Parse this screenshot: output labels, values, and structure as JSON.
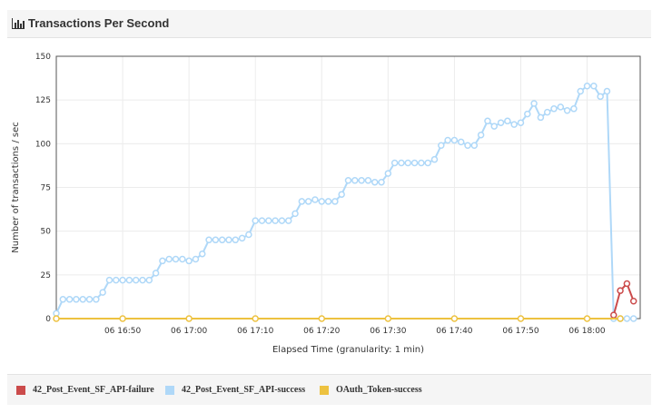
{
  "header": {
    "title": "Transactions Per Second",
    "icon": "bar-chart-icon"
  },
  "colors": {
    "failure": "#cb4b4b",
    "success": "#afd8f8",
    "oauth": "#edc240",
    "header_bg": "#f5f5f5"
  },
  "chart_data": {
    "type": "line",
    "xlabel": "Elapsed Time (granularity: 1 min)",
    "ylabel": "Number of transactions / sec",
    "ylim": [
      0,
      150
    ],
    "yticks": [
      0,
      25,
      50,
      75,
      100,
      125,
      150
    ],
    "xticks": [
      "06 16:50",
      "06 17:00",
      "06 17:10",
      "06 17:20",
      "06 17:30",
      "06 17:40",
      "06 17:50",
      "06 18:00"
    ],
    "xrange": [
      "06 16:40",
      "06 18:08"
    ],
    "grid": true,
    "legend_position": "bottom",
    "series": [
      {
        "name": "42_Post_Event_SF_API-failure",
        "color": "#cb4b4b",
        "x": [
          "06 18:04",
          "06 18:05",
          "06 18:06",
          "06 18:07"
        ],
        "values": [
          2,
          16,
          20,
          10
        ]
      },
      {
        "name": "42_Post_Event_SF_API-success",
        "color": "#afd8f8",
        "x": [
          "06 16:40",
          "06 16:41",
          "06 16:42",
          "06 16:43",
          "06 16:44",
          "06 16:45",
          "06 16:46",
          "06 16:47",
          "06 16:48",
          "06 16:49",
          "06 16:50",
          "06 16:51",
          "06 16:52",
          "06 16:53",
          "06 16:54",
          "06 16:55",
          "06 16:56",
          "06 16:57",
          "06 16:58",
          "06 16:59",
          "06 17:00",
          "06 17:01",
          "06 17:02",
          "06 17:03",
          "06 17:04",
          "06 17:05",
          "06 17:06",
          "06 17:07",
          "06 17:08",
          "06 17:09",
          "06 17:10",
          "06 17:11",
          "06 17:12",
          "06 17:13",
          "06 17:14",
          "06 17:15",
          "06 17:16",
          "06 17:17",
          "06 17:18",
          "06 17:19",
          "06 17:20",
          "06 17:21",
          "06 17:22",
          "06 17:23",
          "06 17:24",
          "06 17:25",
          "06 17:26",
          "06 17:27",
          "06 17:28",
          "06 17:29",
          "06 17:30",
          "06 17:31",
          "06 17:32",
          "06 17:33",
          "06 17:34",
          "06 17:35",
          "06 17:36",
          "06 17:37",
          "06 17:38",
          "06 17:39",
          "06 17:40",
          "06 17:41",
          "06 17:42",
          "06 17:43",
          "06 17:44",
          "06 17:45",
          "06 17:46",
          "06 17:47",
          "06 17:48",
          "06 17:49",
          "06 17:50",
          "06 17:51",
          "06 17:52",
          "06 17:53",
          "06 17:54",
          "06 17:55",
          "06 17:56",
          "06 17:57",
          "06 17:58",
          "06 17:59",
          "06 18:00",
          "06 18:01",
          "06 18:02",
          "06 18:03",
          "06 18:04",
          "06 18:05",
          "06 18:06",
          "06 18:07"
        ],
        "values": [
          3,
          11,
          11,
          11,
          11,
          11,
          11,
          15,
          22,
          22,
          22,
          22,
          22,
          22,
          22,
          26,
          33,
          34,
          34,
          34,
          33,
          34,
          37,
          45,
          45,
          45,
          45,
          45,
          46,
          48,
          56,
          56,
          56,
          56,
          56,
          56,
          60,
          67,
          67,
          68,
          67,
          67,
          67,
          71,
          79,
          79,
          79,
          79,
          78,
          78,
          83,
          89,
          89,
          89,
          89,
          89,
          89,
          91,
          99,
          102,
          102,
          101,
          99,
          99,
          105,
          113,
          110,
          112,
          113,
          111,
          112,
          117,
          123,
          115,
          118,
          120,
          121,
          119,
          120,
          130,
          133,
          133,
          127,
          130,
          0,
          0,
          0,
          0
        ]
      },
      {
        "name": "OAuth_Token-success",
        "color": "#edc240",
        "x": [
          "06 16:40",
          "06 16:50",
          "06 17:00",
          "06 17:10",
          "06 17:20",
          "06 17:30",
          "06 17:40",
          "06 17:50",
          "06 18:00",
          "06 18:05"
        ],
        "values": [
          0,
          0,
          0,
          0,
          0,
          0,
          0,
          0,
          0,
          0
        ]
      }
    ]
  }
}
